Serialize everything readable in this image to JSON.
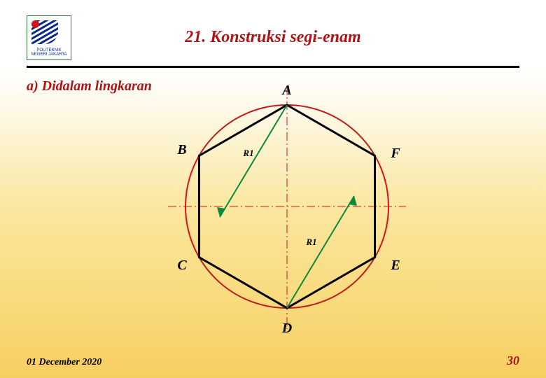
{
  "logo_text": "POLITEKNIK\nNEGERI\nJAKARTA",
  "title": "21.  Konstruksi segi-enam",
  "subtitle": "a)   Didalam lingkaran",
  "footer_date": "01 December 2020",
  "page_number": "30",
  "diagram": {
    "circle_radius": 145,
    "circle_stroke": "#d8121a",
    "axis_stroke": "#d8121a",
    "arc_stroke": "#a8261a",
    "hex_stroke": "#000000",
    "radius_line_stroke": "#0a8a3a",
    "arrow_fill": "#0a8a3a",
    "labels": {
      "top": "A",
      "ul": "B",
      "ll": "C",
      "bottom": "D",
      "lr": "E",
      "ur": "F",
      "r_upper": "R1",
      "r_lower": "R1"
    }
  }
}
